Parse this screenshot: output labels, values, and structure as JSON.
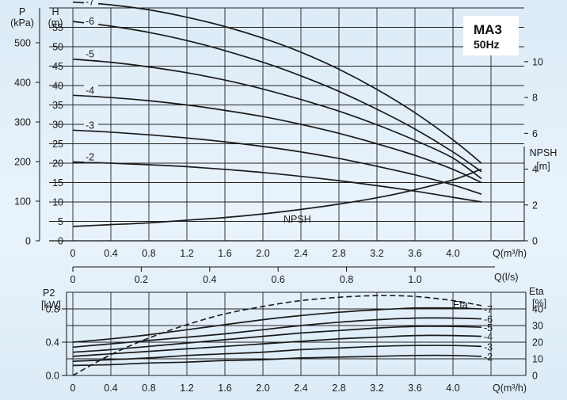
{
  "chart_data": [
    {
      "type": "line",
      "title": "MA3",
      "subtitle": "50Hz",
      "axes": {
        "p": {
          "label_line1": "P",
          "label_line2": "(kPa)",
          "ticks": [
            0,
            100,
            200,
            300,
            400,
            500
          ],
          "range": [
            0,
            588
          ]
        },
        "h": {
          "label_line1": "H",
          "label_line2": "(m)",
          "ticks": [
            0,
            5,
            10,
            15,
            20,
            25,
            30,
            35,
            40,
            45,
            50,
            55
          ],
          "range": [
            0,
            60
          ]
        },
        "npsh": {
          "label_line1": "NPSH",
          "label_line2": "[m]",
          "ticks": [
            0,
            2,
            4,
            6,
            8,
            10
          ],
          "range": [
            0,
            13
          ]
        },
        "q_m3h": {
          "label": "Q(m³/h)",
          "ticks": [
            0,
            0.4,
            0.8,
            1.2,
            1.6,
            2.0,
            2.4,
            2.8,
            3.2,
            3.6,
            4.0
          ],
          "range": [
            0,
            4.4
          ]
        },
        "q_ls": {
          "label": "Q(l/s)",
          "ticks": [
            0,
            0.2,
            0.4,
            0.6,
            0.8,
            1.0
          ],
          "range": [
            0,
            1.2222
          ]
        }
      },
      "grid": true,
      "series": [
        {
          "name": "-7",
          "x": [
            0,
            0.4,
            0.8,
            1.2,
            1.6,
            2.0,
            2.4,
            2.8,
            3.2,
            3.6,
            4.0,
            4.3
          ],
          "y": [
            61.5,
            60.8,
            59.5,
            57.6,
            55.2,
            52.2,
            48.6,
            44.2,
            39.0,
            33.0,
            26.0,
            20.0
          ]
        },
        {
          "name": "-6",
          "x": [
            0,
            0.4,
            0.8,
            1.2,
            1.6,
            2.0,
            2.4,
            2.8,
            3.2,
            3.6,
            4.0,
            4.3
          ],
          "y": [
            56.5,
            55.3,
            53.7,
            51.6,
            49.0,
            46.0,
            42.5,
            38.5,
            33.9,
            28.8,
            22.9,
            17.8
          ]
        },
        {
          "name": "-5",
          "x": [
            0,
            0.4,
            0.8,
            1.2,
            1.6,
            2.0,
            2.4,
            2.8,
            3.2,
            3.6,
            4.0,
            4.3
          ],
          "y": [
            46.8,
            46.0,
            44.8,
            43.3,
            41.4,
            39.1,
            36.4,
            33.4,
            29.9,
            25.9,
            21.3,
            16.0
          ]
        },
        {
          "name": "-4",
          "x": [
            0,
            0.4,
            0.8,
            1.2,
            1.6,
            2.0,
            2.4,
            2.8,
            3.2,
            3.6,
            4.0,
            4.3
          ],
          "y": [
            37.5,
            36.9,
            36.1,
            35.0,
            33.6,
            32.0,
            30.0,
            27.7,
            25.0,
            22.0,
            18.4,
            15.0
          ]
        },
        {
          "name": "-3",
          "x": [
            0,
            0.4,
            0.8,
            1.2,
            1.6,
            2.0,
            2.4,
            2.8,
            3.2,
            3.6,
            4.0,
            4.3
          ],
          "y": [
            28.5,
            28.0,
            27.3,
            26.5,
            25.5,
            24.3,
            22.9,
            21.2,
            19.2,
            17.0,
            14.4,
            12.0
          ]
        },
        {
          "name": "-2",
          "x": [
            0,
            0.4,
            0.8,
            1.2,
            1.6,
            2.0,
            2.4,
            2.8,
            3.2,
            3.6,
            4.0,
            4.3
          ],
          "y": [
            20.3,
            20.0,
            19.6,
            19.1,
            18.4,
            17.6,
            16.6,
            15.5,
            14.2,
            12.8,
            11.2,
            10.0
          ]
        },
        {
          "name": "NPSH",
          "axis": "npsh",
          "x": [
            0,
            0.4,
            0.8,
            1.2,
            1.6,
            2.0,
            2.4,
            2.8,
            3.2,
            3.6,
            4.0,
            4.3
          ],
          "y": [
            0.8,
            0.9,
            1.0,
            1.15,
            1.3,
            1.5,
            1.75,
            2.05,
            2.4,
            2.85,
            3.4,
            4.0
          ]
        }
      ]
    },
    {
      "type": "line",
      "axes": {
        "p2": {
          "label_line1": "P2",
          "label_line2": "[kW]",
          "ticks": [
            0.0,
            0.4,
            0.8
          ],
          "range": [
            0,
            1.0
          ]
        },
        "eta": {
          "label_line1": "Eta",
          "label_line2": "[%]",
          "ticks": [
            0,
            10,
            20,
            30,
            40
          ],
          "range": [
            0,
            50
          ]
        },
        "q_m3h": {
          "label": "Q(m³/h)",
          "ticks": [
            0,
            0.4,
            0.8,
            1.2,
            1.6,
            2.0,
            2.4,
            2.8,
            3.2,
            3.6,
            4.0
          ],
          "range": [
            0,
            4.4
          ]
        }
      },
      "grid": true,
      "series": [
        {
          "name": "Eta",
          "axis": "eta",
          "style": "dashed",
          "x": [
            0,
            0.4,
            0.8,
            1.2,
            1.6,
            2.0,
            2.4,
            2.8,
            3.2,
            3.6,
            4.0,
            4.3
          ],
          "y": [
            0,
            12.5,
            22.5,
            30.5,
            37.0,
            41.5,
            45.0,
            47.0,
            48.0,
            47.5,
            45.0,
            42.0
          ]
        },
        {
          "name": "-7",
          "x": [
            0,
            0.4,
            0.8,
            1.2,
            1.6,
            2.0,
            2.4,
            2.8,
            3.2,
            3.6,
            4.0,
            4.3
          ],
          "y": [
            0.4,
            0.44,
            0.49,
            0.55,
            0.61,
            0.67,
            0.72,
            0.76,
            0.79,
            0.81,
            0.81,
            0.8
          ]
        },
        {
          "name": "-6",
          "x": [
            0,
            0.4,
            0.8,
            1.2,
            1.6,
            2.0,
            2.4,
            2.8,
            3.2,
            3.6,
            4.0,
            4.3
          ],
          "y": [
            0.34,
            0.38,
            0.42,
            0.46,
            0.5,
            0.55,
            0.6,
            0.64,
            0.67,
            0.69,
            0.69,
            0.68
          ]
        },
        {
          "name": "-5",
          "x": [
            0,
            0.4,
            0.8,
            1.2,
            1.6,
            2.0,
            2.4,
            2.8,
            3.2,
            3.6,
            4.0,
            4.3
          ],
          "y": [
            0.28,
            0.31,
            0.35,
            0.39,
            0.43,
            0.47,
            0.51,
            0.54,
            0.57,
            0.59,
            0.59,
            0.58
          ]
        },
        {
          "name": "-4",
          "x": [
            0,
            0.4,
            0.8,
            1.2,
            1.6,
            2.0,
            2.4,
            2.8,
            3.2,
            3.6,
            4.0,
            4.3
          ],
          "y": [
            0.23,
            0.26,
            0.29,
            0.32,
            0.35,
            0.38,
            0.41,
            0.44,
            0.46,
            0.48,
            0.48,
            0.47
          ]
        },
        {
          "name": "-3",
          "x": [
            0,
            0.4,
            0.8,
            1.2,
            1.6,
            2.0,
            2.4,
            2.8,
            3.2,
            3.6,
            4.0,
            4.3
          ],
          "y": [
            0.17,
            0.19,
            0.21,
            0.24,
            0.26,
            0.28,
            0.31,
            0.33,
            0.35,
            0.36,
            0.36,
            0.35
          ]
        },
        {
          "name": "-2",
          "x": [
            0,
            0.4,
            0.8,
            1.2,
            1.6,
            2.0,
            2.4,
            2.8,
            3.2,
            3.6,
            4.0,
            4.3
          ],
          "y": [
            0.12,
            0.13,
            0.15,
            0.16,
            0.18,
            0.19,
            0.21,
            0.22,
            0.23,
            0.24,
            0.24,
            0.23
          ]
        }
      ]
    }
  ]
}
